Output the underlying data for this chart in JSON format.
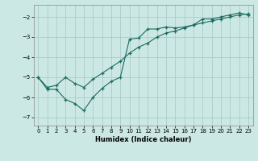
{
  "xlabel": "Humidex (Indice chaleur)",
  "bg_color": "#cce8e4",
  "grid_color": "#aacccc",
  "line_color": "#1a6b60",
  "xlim": [
    -0.5,
    23.5
  ],
  "ylim": [
    -7.4,
    -1.4
  ],
  "yticks": [
    -7,
    -6,
    -5,
    -4,
    -3,
    -2
  ],
  "xticks": [
    0,
    1,
    2,
    3,
    4,
    5,
    6,
    7,
    8,
    9,
    10,
    11,
    12,
    13,
    14,
    15,
    16,
    17,
    18,
    19,
    20,
    21,
    22,
    23
  ],
  "line1_x": [
    0,
    1,
    2,
    3,
    4,
    5,
    6,
    7,
    8,
    9,
    10,
    11,
    12,
    13,
    14,
    15,
    16,
    17,
    18,
    19,
    20,
    21,
    22,
    23
  ],
  "line1_y": [
    -5.0,
    -5.6,
    -5.6,
    -6.1,
    -6.3,
    -6.65,
    -6.0,
    -5.55,
    -5.2,
    -5.0,
    -3.1,
    -3.05,
    -2.6,
    -2.6,
    -2.5,
    -2.55,
    -2.5,
    -2.4,
    -2.1,
    -2.1,
    -2.0,
    -1.9,
    -1.8,
    -1.9
  ],
  "line2_x": [
    0,
    1,
    2,
    3,
    4,
    5,
    6,
    7,
    8,
    9,
    10,
    11,
    12,
    13,
    14,
    15,
    16,
    17,
    18,
    19,
    20,
    21,
    22,
    23
  ],
  "line2_y": [
    -5.0,
    -5.5,
    -5.4,
    -5.0,
    -5.3,
    -5.5,
    -5.1,
    -4.8,
    -4.5,
    -4.2,
    -3.8,
    -3.5,
    -3.3,
    -3.0,
    -2.8,
    -2.7,
    -2.55,
    -2.4,
    -2.3,
    -2.2,
    -2.1,
    -2.0,
    -1.9,
    -1.85
  ]
}
